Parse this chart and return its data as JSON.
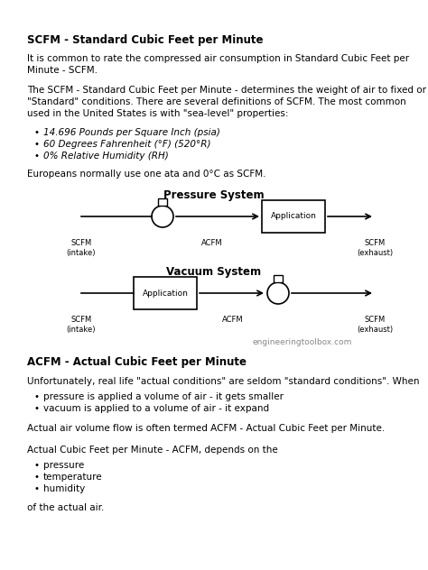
{
  "bg_color": "#ffffff",
  "title1": "SCFM - Standard Cubic Feet per Minute",
  "para1": "It is common to rate the compressed air consumption in Standard Cubic Feet per\nMinute - SCFM.",
  "para2": "The SCFM - Standard Cubic Feet per Minute - determines the weight of air to fixed or\n\"Standard\" conditions. There are several definitions of SCFM. The most common\nused in the United States is with \"sea-level\" properties:",
  "bullets1": [
    "14.696 Pounds per Square Inch (psia)",
    "60 Degrees Fahrenheit (°F) (520°R)",
    "0% Relative Humidity (RH)"
  ],
  "para3": "Europeans normally use one ata and 0°C as SCFM.",
  "pressure_title": "Pressure System",
  "vacuum_title": "Vacuum System",
  "watermark": "engineeringtoolbox.com",
  "title2": "ACFM - Actual Cubic Feet per Minute",
  "para4": "Unfortunately, real life \"actual conditions\" are seldom \"standard conditions\". When",
  "bullets2": [
    "pressure is applied a volume of air - it gets smaller",
    "vacuum is applied to a volume of air - it expand"
  ],
  "para5": "Actual air volume flow is often termed ACFM - Actual Cubic Feet per Minute.",
  "para6": "Actual Cubic Feet per Minute - ACFM, depends on the",
  "bullets3": [
    "pressure",
    "temperature",
    "humidity"
  ],
  "para7": "of the actual air."
}
